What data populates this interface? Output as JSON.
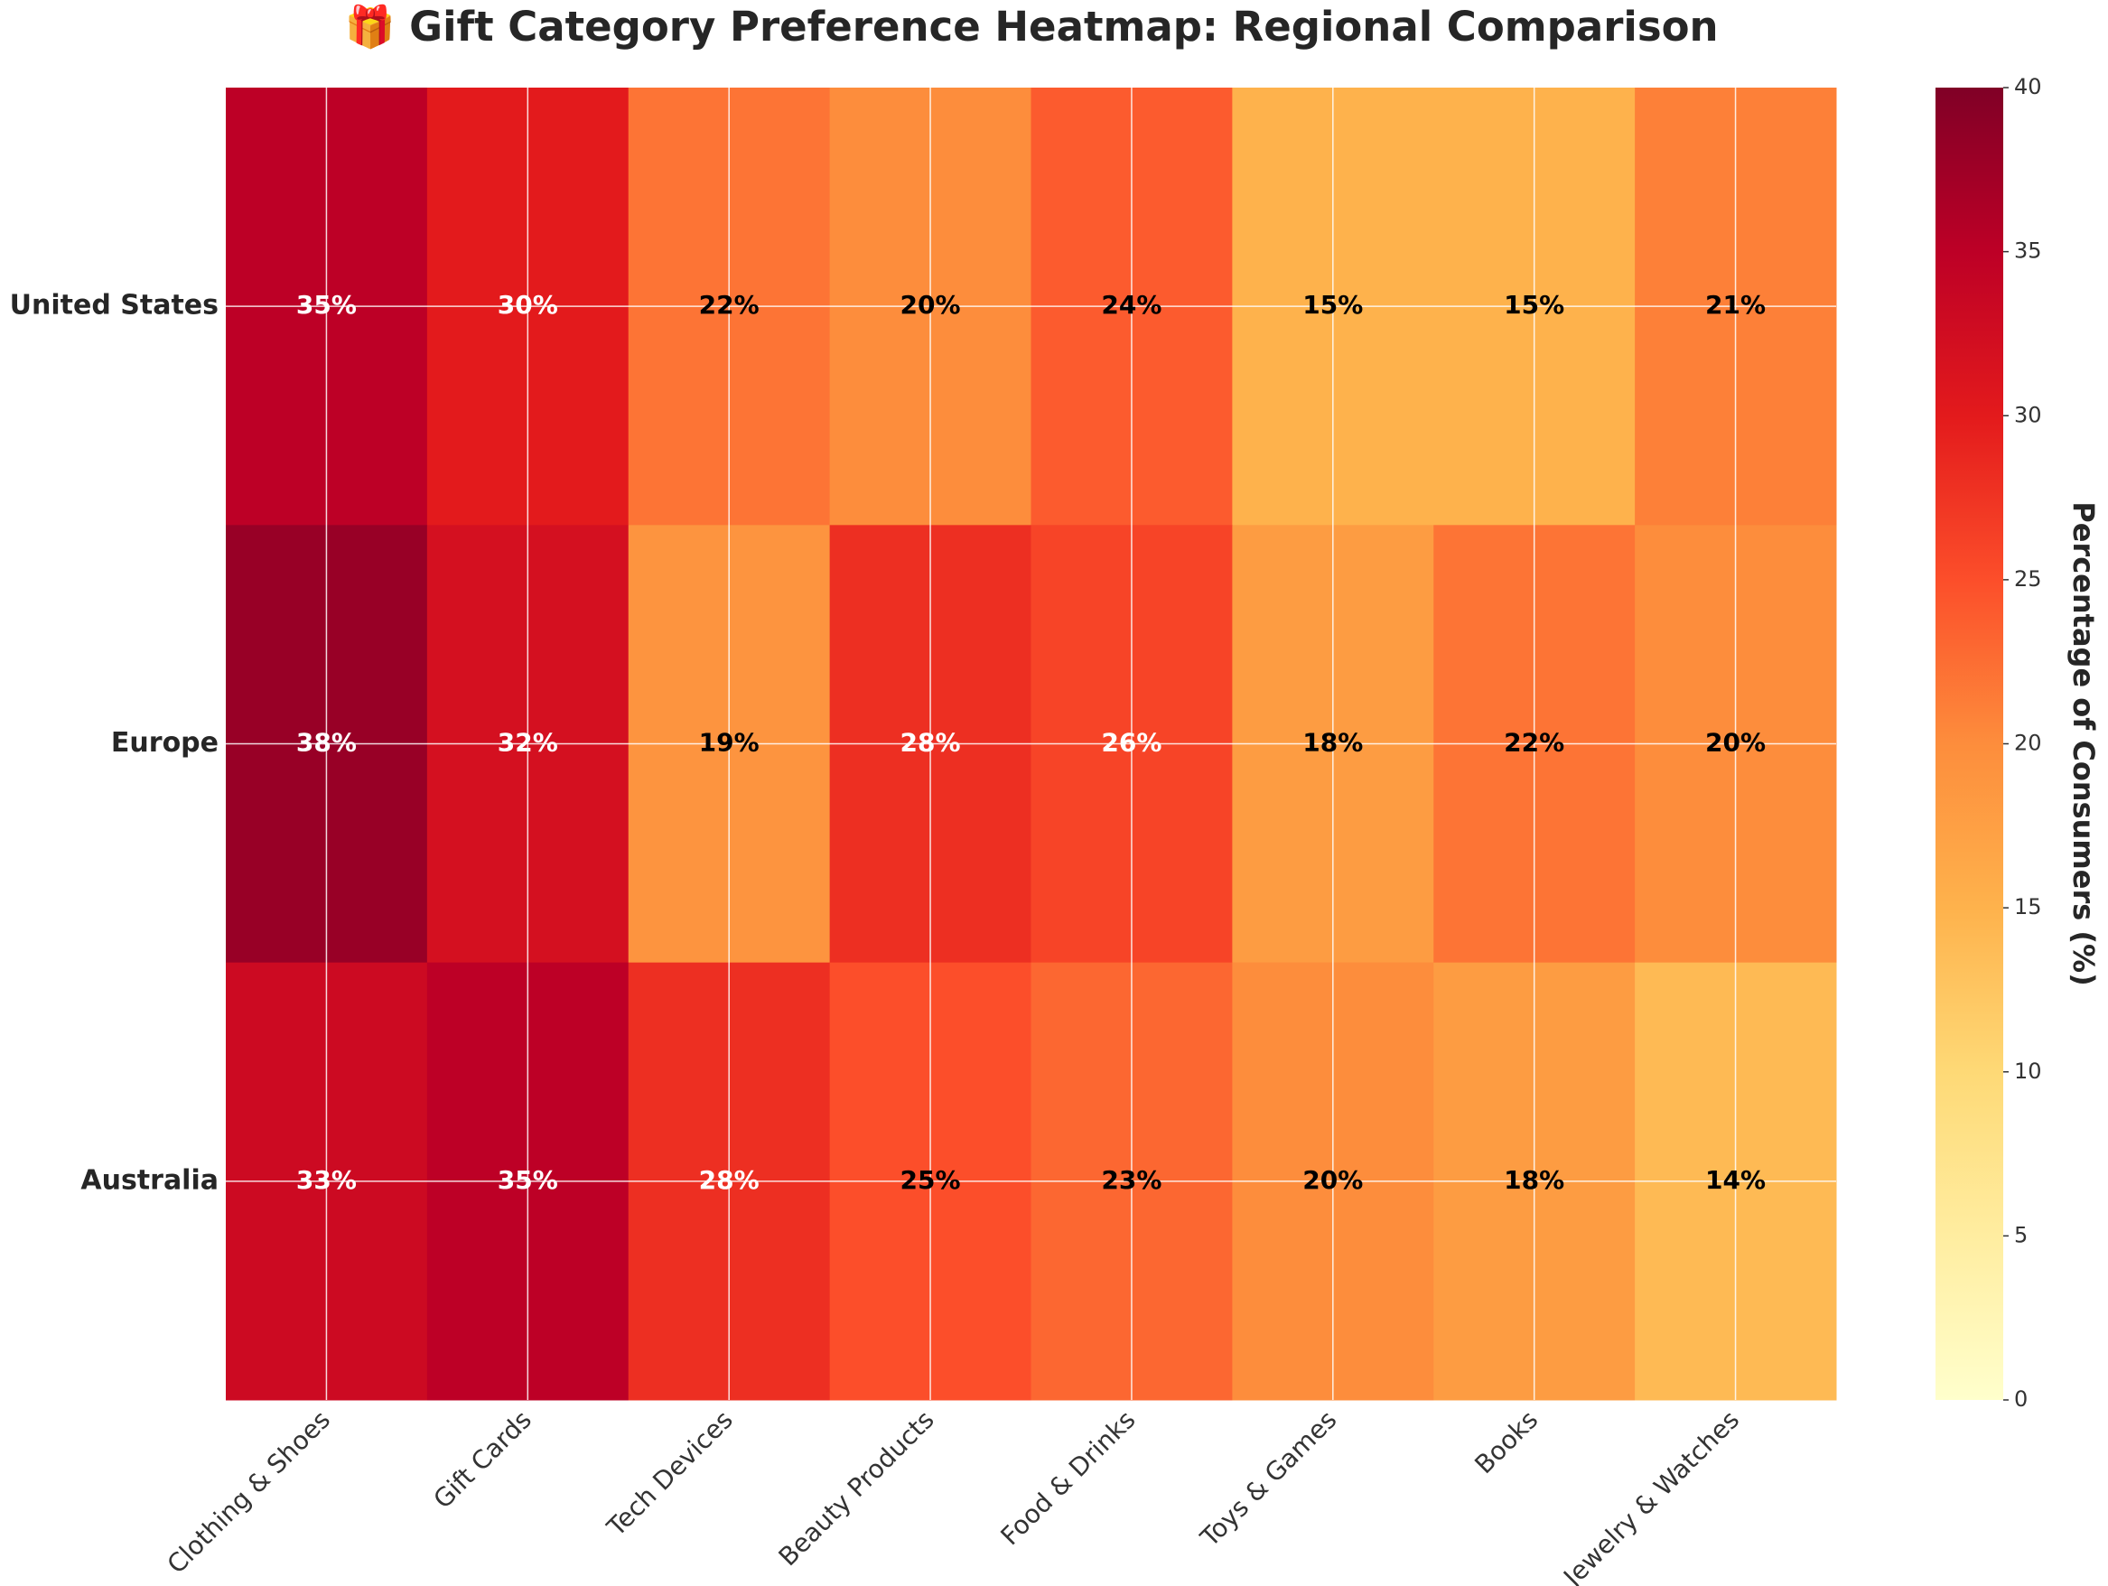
{
  "chart_data": {
    "type": "heatmap",
    "title": "🎁 Gift Category Preference Heatmap: Regional Comparison",
    "categories": [
      "Clothing & Shoes",
      "Gift Cards",
      "Tech Devices",
      "Beauty Products",
      "Food & Drinks",
      "Toys & Games",
      "Books",
      "Jewelry & Watches"
    ],
    "rows": [
      "United States",
      "Europe",
      "Australia"
    ],
    "values": [
      [
        35,
        30,
        22,
        20,
        24,
        15,
        15,
        21
      ],
      [
        38,
        32,
        19,
        28,
        26,
        18,
        22,
        20
      ],
      [
        33,
        35,
        28,
        25,
        23,
        20,
        18,
        14
      ]
    ],
    "value_labels": [
      [
        "35%",
        "30%",
        "22%",
        "20%",
        "24%",
        "15%",
        "15%",
        "21%"
      ],
      [
        "38%",
        "32%",
        "19%",
        "28%",
        "26%",
        "18%",
        "22%",
        "20%"
      ],
      [
        "33%",
        "35%",
        "28%",
        "25%",
        "23%",
        "20%",
        "18%",
        "14%"
      ]
    ],
    "colormap": [
      "#ffffcc",
      "#ffeda0",
      "#fed976",
      "#feb24c",
      "#fd8d3c",
      "#fc4e2a",
      "#e31a1c",
      "#bd0026",
      "#800026"
    ],
    "colorbar": {
      "label": "Percentage of Consumers (%)",
      "lim": [
        0,
        40
      ],
      "ticks": [
        0,
        5,
        10,
        15,
        20,
        25,
        30,
        35,
        40
      ]
    },
    "grid": true
  }
}
